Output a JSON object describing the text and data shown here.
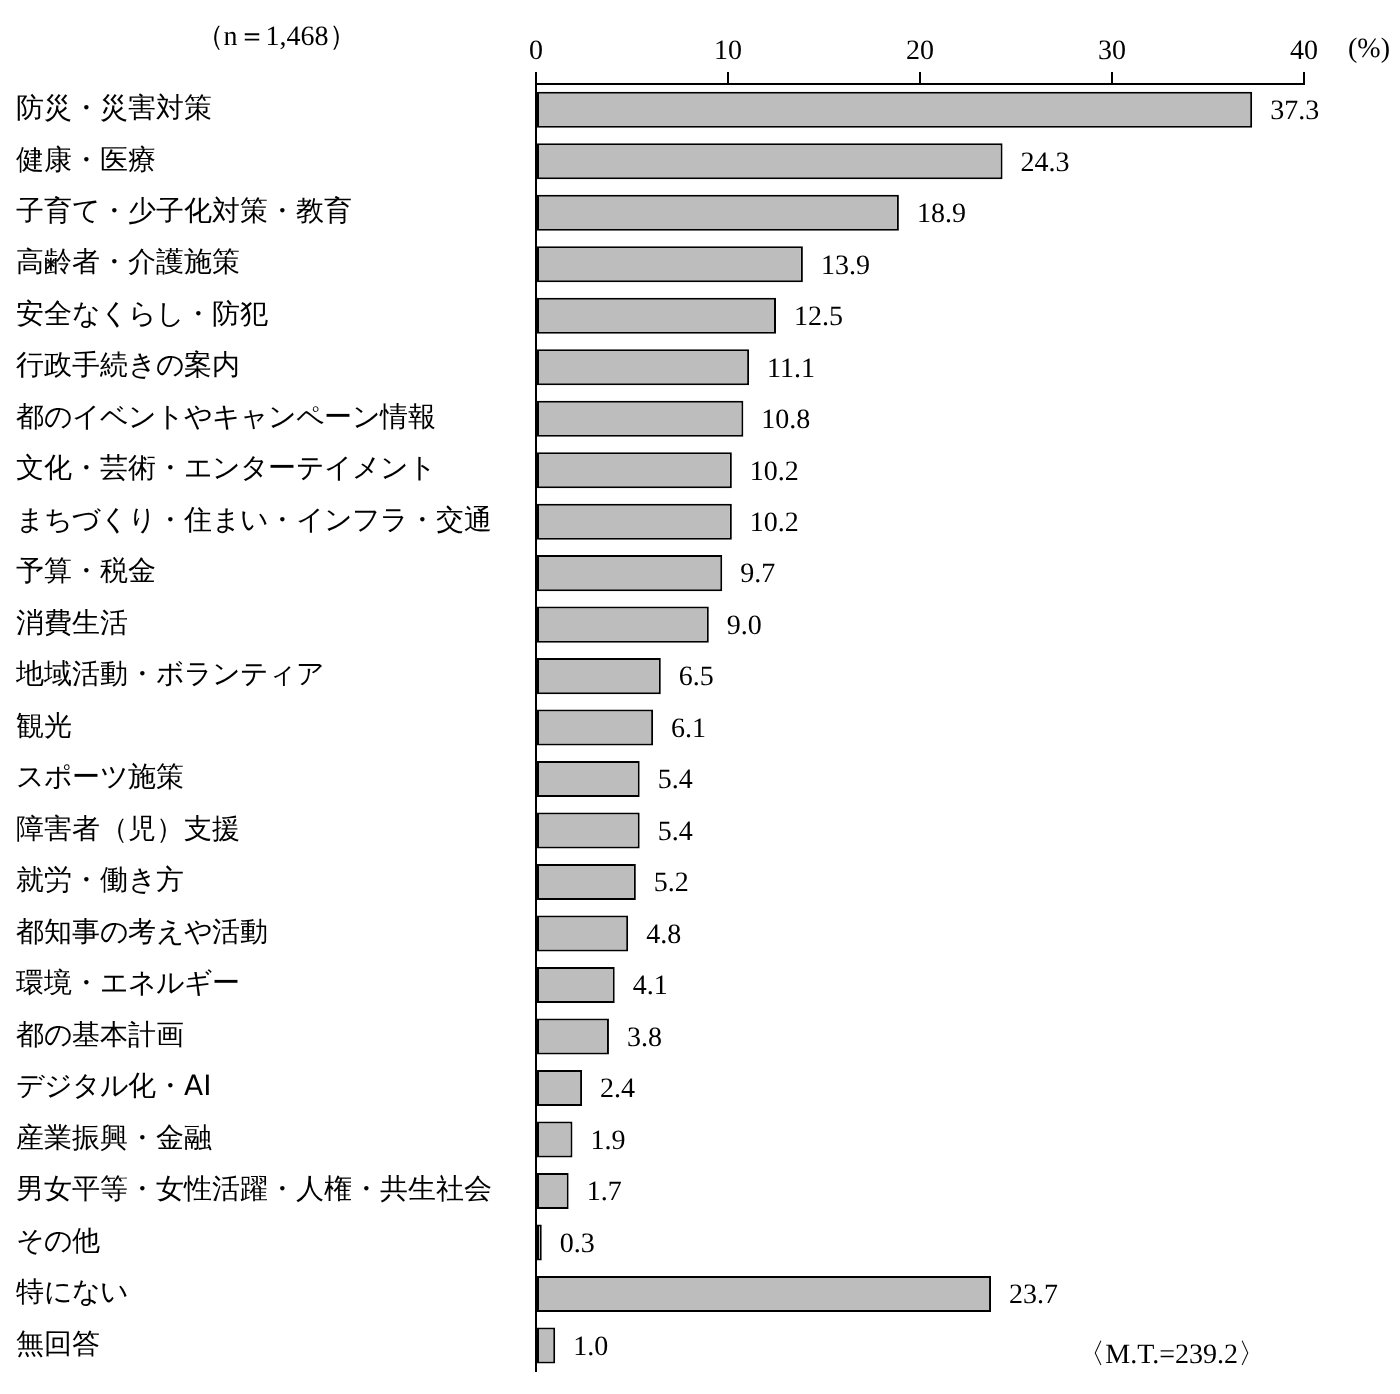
{
  "chart_data": {
    "type": "bar",
    "orientation": "horizontal",
    "subtitle": "（n＝1,468）",
    "xlabel": "(%)",
    "annotations": [
      "〈M.T.=239.2〉"
    ],
    "categories": [
      "防災・災害対策",
      "健康・医療",
      "子育て・少子化対策・教育",
      "高齢者・介護施策",
      "安全なくらし・防犯",
      "行政手続きの案内",
      "都のイベントやキャンペーン情報",
      "文化・芸術・エンターテイメント",
      "まちづくり・住まい・インフラ・交通",
      "予算・税金",
      "消費生活",
      "地域活動・ボランティア",
      "観光",
      "スポーツ施策",
      "障害者（児）支援",
      "就労・働き方",
      "都知事の考えや活動",
      "環境・エネルギー",
      "都の基本計画",
      "デジタル化・AI",
      "産業振興・金融",
      "男女平等・女性活躍・人権・共生社会",
      "その他",
      "特にない",
      "無回答"
    ],
    "values": [
      37.3,
      24.3,
      18.9,
      13.9,
      12.5,
      11.1,
      10.8,
      10.2,
      10.2,
      9.7,
      9.0,
      6.5,
      6.1,
      5.4,
      5.4,
      5.2,
      4.8,
      4.1,
      3.8,
      2.4,
      1.9,
      1.7,
      0.3,
      23.7,
      1.0
    ],
    "value_labels": [
      "37.3",
      "24.3",
      "18.9",
      "13.9",
      "12.5",
      "11.1",
      "10.8",
      "10.2",
      "10.2",
      "9.7",
      "9.0",
      "6.5",
      "6.1",
      "5.4",
      "5.4",
      "5.2",
      "4.8",
      "4.1",
      "3.8",
      "2.4",
      "1.9",
      "1.7",
      "0.3",
      "23.7",
      "1.0"
    ],
    "color": "#bdbdbd",
    "xlim": [
      0,
      40
    ],
    "xticks": [
      0,
      10,
      20,
      30,
      40
    ]
  }
}
